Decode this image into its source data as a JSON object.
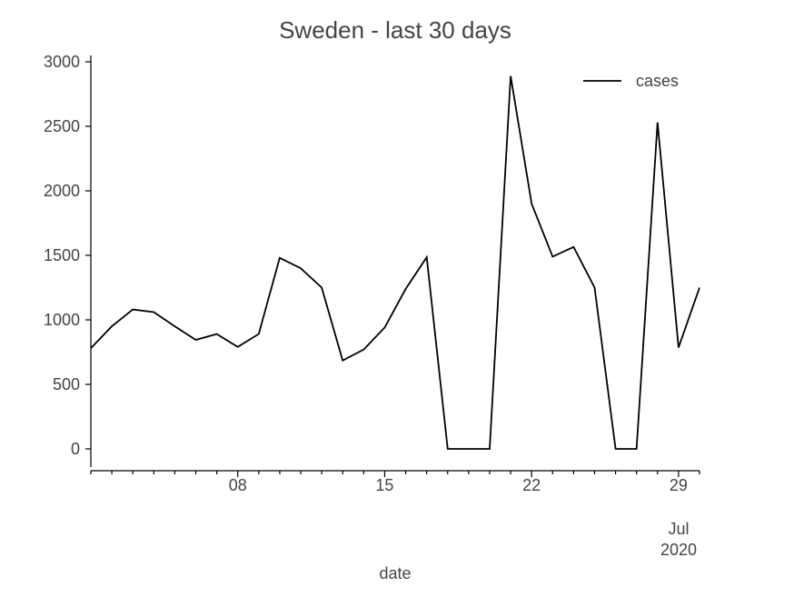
{
  "chart_data": {
    "type": "line",
    "title": "Sweden - last 30 days",
    "xlabel": "date",
    "ylabel": "",
    "ylim": [
      -150,
      3050
    ],
    "yticks": [
      0,
      500,
      1000,
      1500,
      2000,
      2500,
      3000
    ],
    "ytick_labels": [
      "0",
      "500",
      "1000",
      "1500",
      "2000",
      "2500",
      "3000"
    ],
    "xlim": [
      "2020-07-01",
      "2020-07-30"
    ],
    "xticks_major": [
      "2020-07-08",
      "2020-07-15",
      "2020-07-22",
      "2020-07-29"
    ],
    "xtick_labels": [
      "08",
      "15",
      "22",
      "29"
    ],
    "xaxis_secondary_label": [
      "Jul",
      "2020"
    ],
    "legend": {
      "position": "upper right",
      "entries": [
        "cases"
      ]
    },
    "grid": false,
    "x": [
      "2020-07-01",
      "2020-07-02",
      "2020-07-03",
      "2020-07-04",
      "2020-07-05",
      "2020-07-06",
      "2020-07-07",
      "2020-07-08",
      "2020-07-09",
      "2020-07-10",
      "2020-07-11",
      "2020-07-12",
      "2020-07-13",
      "2020-07-14",
      "2020-07-15",
      "2020-07-16",
      "2020-07-17",
      "2020-07-18",
      "2020-07-19",
      "2020-07-20",
      "2020-07-21",
      "2020-07-22",
      "2020-07-23",
      "2020-07-24",
      "2020-07-25",
      "2020-07-26",
      "2020-07-27",
      "2020-07-28",
      "2020-07-29",
      "2020-07-30"
    ],
    "series": [
      {
        "name": "cases",
        "color": "#000000",
        "values": [
          780,
          950,
          1080,
          1060,
          950,
          845,
          890,
          790,
          890,
          1480,
          1400,
          1250,
          685,
          770,
          940,
          1240,
          1485,
          0,
          0,
          0,
          2890,
          1900,
          1490,
          1565,
          1250,
          0,
          0,
          2530,
          785,
          1250
        ]
      }
    ]
  }
}
